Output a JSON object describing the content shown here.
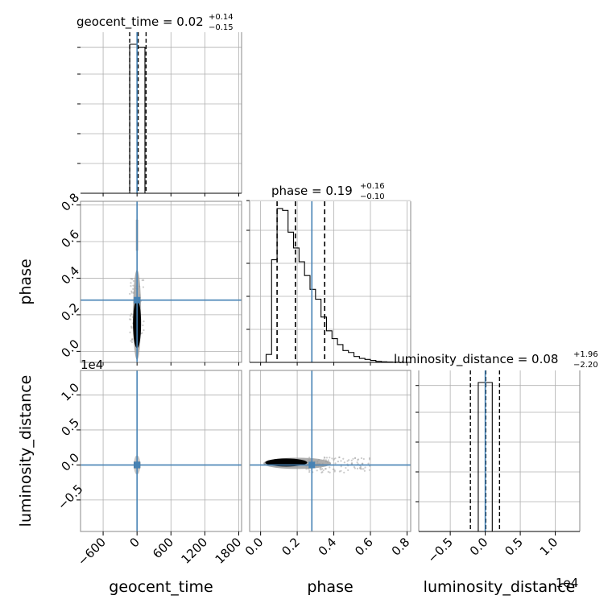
{
  "chart_data": {
    "type": "corner",
    "parameters": [
      "geocent_time",
      "phase",
      "luminosity_distance"
    ],
    "truth": {
      "geocent_time": 0,
      "phase": 0.28,
      "luminosity_distance": 0
    },
    "truth_color": "#4682b4",
    "grid": true,
    "titles": {
      "geocent_time": {
        "text": "geocent_time = 0.02",
        "sup": "+0.14",
        "sub": "−0.15"
      },
      "phase": {
        "text": "phase = 0.19",
        "sup": "+0.16",
        "sub": "−0.10"
      },
      "luminosity_distance": {
        "text": "luminosity_distance = 0.08",
        "sup": "+1.96",
        "sub": "−2.20"
      }
    },
    "xlabels": {
      "geocent_time": "geocent_time",
      "phase": "phase",
      "luminosity_distance": "luminosity_distance"
    },
    "ylabels": {
      "phase": "phase",
      "luminosity_distance": "luminosity_distance"
    },
    "ranges": {
      "geocent_time": [
        -1000,
        1850
      ],
      "phase": [
        -0.06,
        0.82
      ],
      "luminosity_distance": [
        -9500,
        13500
      ]
    },
    "ticks": {
      "geocent_time": [
        "−600",
        "0",
        "600",
        "1200",
        "1800"
      ],
      "geocent_time_values": [
        -600,
        0,
        600,
        1200,
        1800
      ],
      "phase_x": [
        "0.0",
        "0.2",
        "0.4",
        "0.6",
        "0.8"
      ],
      "phase_x_values": [
        0.0,
        0.2,
        0.4,
        0.6,
        0.8
      ],
      "phase_y": [
        "0.0",
        "0.2",
        "0.4",
        "0.6",
        "0.8"
      ],
      "phase_y_values": [
        0.0,
        0.2,
        0.4,
        0.6,
        0.8
      ],
      "luminosity_distance_x": [
        "−0.5",
        "0.0",
        "0.5",
        "1.0"
      ],
      "luminosity_distance_x_values": [
        -5000,
        0,
        5000,
        10000
      ],
      "luminosity_distance_y": [
        "1.0",
        "0.5",
        "0.0",
        "−0.5"
      ],
      "luminosity_distance_y_values": [
        10000,
        5000,
        0,
        -5000
      ]
    },
    "offset_text": {
      "left": "1e4",
      "bottom": "1e4"
    },
    "quantiles": {
      "geocent_time": [
        -130,
        20,
        160
      ],
      "phase": [
        0.09,
        0.19,
        0.35
      ],
      "luminosity_distance": [
        -2120,
        80,
        2040
      ]
    },
    "hist_geocent_time": {
      "edges": [
        -130,
        0,
        140
      ],
      "counts": [
        1.0,
        0.98
      ]
    },
    "hist_phase": {
      "edges": [
        -0.02,
        0.03,
        0.06,
        0.09,
        0.12,
        0.15,
        0.18,
        0.21,
        0.24,
        0.27,
        0.3,
        0.33,
        0.36,
        0.39,
        0.42,
        0.45,
        0.48,
        0.51,
        0.54,
        0.57,
        0.6,
        0.63,
        0.66,
        0.69,
        0.72,
        0.75,
        0.78
      ],
      "counts": [
        0.0,
        0.04,
        0.52,
        0.78,
        0.77,
        0.66,
        0.58,
        0.51,
        0.44,
        0.37,
        0.32,
        0.23,
        0.16,
        0.12,
        0.09,
        0.06,
        0.05,
        0.03,
        0.02,
        0.015,
        0.01,
        0.005,
        0.003,
        0.002,
        0.001,
        0.0
      ]
    },
    "hist_luminosity_distance": {
      "edges": [
        -1000,
        0,
        1000
      ],
      "counts": [
        1.0,
        1.0
      ]
    }
  }
}
